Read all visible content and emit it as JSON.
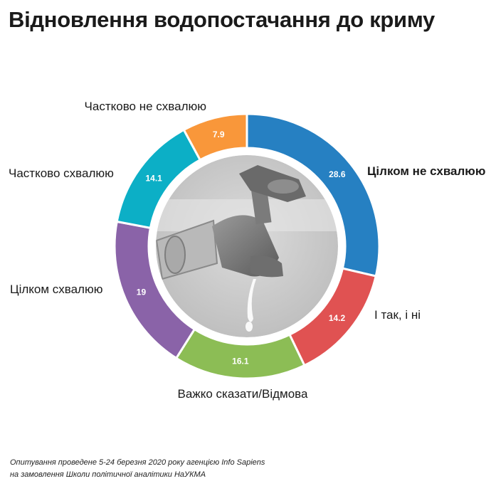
{
  "chart_data": {
    "type": "pie",
    "title": "Відновлення водопостачання до криму",
    "categories": [
      "Цілком не схвалюю",
      "І так, і ні",
      "Важко сказати/Відмова",
      "Цілком схвалюю",
      "Частково схвалюю",
      "Частково не схвалюю"
    ],
    "values": [
      28.6,
      14.2,
      16.1,
      19,
      14.1,
      7.9
    ],
    "value_labels": [
      "28.6",
      "14.2",
      "16.1",
      "19",
      "14.1",
      "7.9"
    ],
    "colors": [
      "#2680c2",
      "#e05252",
      "#8cbd55",
      "#8a63a8",
      "#0cafc6",
      "#f9973a"
    ],
    "label_colors": [
      "#1a1a1a",
      "#1a1a1a",
      "#1a1a1a",
      "#1a1a1a",
      "#1a1a1a",
      "#1a1a1a"
    ],
    "grid": false,
    "legend": "none"
  },
  "footer": {
    "line1": "Опитування проведене 5-24 березня 2020 року агенцією Info Sapiens",
    "line2": "на замовлення Школи політичної аналітики НаУКМА"
  },
  "center_image": "water-faucet-photo"
}
